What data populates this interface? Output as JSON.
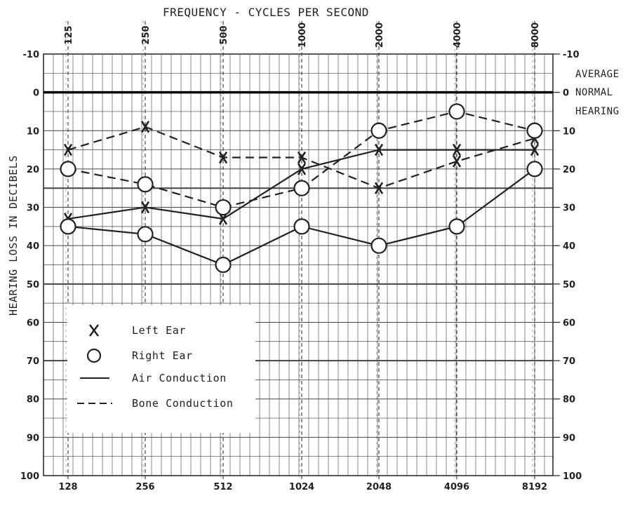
{
  "chart_data": {
    "type": "line",
    "title": "FREQUENCY - CYCLES PER SECOND",
    "ylabel": "HEARING LOSS IN DECIBELS",
    "top_ticks": [
      "125",
      "250",
      "500",
      "1000",
      "2000",
      "4000",
      "8000"
    ],
    "bottom_ticks": [
      "128",
      "256",
      "512",
      "1024",
      "2048",
      "4096",
      "8192"
    ],
    "y_ticks": [
      "-10",
      "0",
      "10",
      "20",
      "30",
      "40",
      "50",
      "60",
      "70",
      "80",
      "90",
      "100"
    ],
    "y_ticks_right": [
      "-10",
      "0",
      "10",
      "20",
      "30",
      "40",
      "50",
      "60",
      "70",
      "80",
      "90",
      "100"
    ],
    "ylim": [
      -10,
      100
    ],
    "y_inverted": true,
    "reference_note": [
      "AVERAGE",
      "NORMAL",
      "HEARING"
    ],
    "grid": true,
    "series": [
      {
        "name": "Left Ear Air Conduction",
        "marker": "x",
        "line": "solid",
        "x": [
          128,
          256,
          512,
          1024,
          2048,
          4096,
          8192
        ],
        "y": [
          33,
          30,
          33,
          20,
          15,
          15,
          15
        ]
      },
      {
        "name": "Left Ear Bone Conduction",
        "marker": "x",
        "line": "dashed",
        "x": [
          128,
          256,
          512,
          1024,
          2048,
          4096,
          8192
        ],
        "y": [
          15,
          9,
          17,
          17,
          25,
          18,
          12
        ]
      },
      {
        "name": "Right Ear Air Conduction",
        "marker": "o",
        "line": "solid",
        "x": [
          128,
          256,
          512,
          1024,
          2048,
          4096,
          8192
        ],
        "y": [
          35,
          37,
          45,
          35,
          40,
          35,
          20
        ]
      },
      {
        "name": "Right Ear Bone Conduction",
        "marker": "o",
        "line": "dashed",
        "x": [
          128,
          256,
          512,
          1024,
          2048,
          4096,
          8192
        ],
        "y": [
          20,
          24,
          30,
          25,
          10,
          5,
          10
        ]
      }
    ],
    "legend": {
      "placement": "bottom-left",
      "items": [
        {
          "symbol": "x",
          "label": "Left Ear"
        },
        {
          "symbol": "o",
          "label": "Right Ear"
        },
        {
          "symbol": "solid",
          "label": "Air Conduction"
        },
        {
          "symbol": "dashed",
          "label": "Bone Conduction"
        }
      ]
    }
  }
}
